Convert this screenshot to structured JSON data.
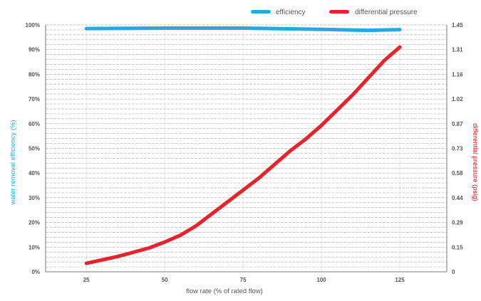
{
  "chart_data": {
    "type": "line",
    "title": "",
    "xlabel": "flow rate (% of rated flow)",
    "ylabel_left": "water removal efficiency (%)",
    "ylabel_right": "differential pressure (psig)",
    "x_ticks": [
      "25",
      "50",
      "75",
      "100",
      "125"
    ],
    "y_left_ticks": [
      "0%",
      "10%",
      "20%",
      "30%",
      "40%",
      "50%",
      "60%",
      "70%",
      "80%",
      "90%",
      "100%"
    ],
    "y_right_ticks": [
      "0",
      "0.15",
      "0.29",
      "0.44",
      "0.58",
      "0.73",
      "0.87",
      "1.02",
      "1.16",
      "1.31",
      "1.45"
    ],
    "xlim": [
      12,
      140
    ],
    "ylim_left": [
      0,
      100
    ],
    "ylim_right": [
      0,
      1.45
    ],
    "grid": true,
    "legend_position": "top-right",
    "series": [
      {
        "name": "efficiency",
        "axis": "left",
        "color": "#29a8e0",
        "x": [
          25,
          50,
          75,
          100,
          115,
          125
        ],
        "y": [
          98.5,
          98.7,
          98.7,
          98.2,
          97.8,
          98.1
        ]
      },
      {
        "name": "differential pressure",
        "axis": "right",
        "color": "#e8212a",
        "x": [
          25,
          30,
          35,
          40,
          45,
          50,
          55,
          60,
          65,
          70,
          75,
          80,
          85,
          90,
          95,
          100,
          105,
          110,
          115,
          120,
          125
        ],
        "y": [
          0.05,
          0.07,
          0.09,
          0.115,
          0.14,
          0.175,
          0.215,
          0.27,
          0.34,
          0.41,
          0.48,
          0.55,
          0.63,
          0.71,
          0.78,
          0.86,
          0.95,
          1.04,
          1.14,
          1.24,
          1.32
        ]
      }
    ]
  }
}
